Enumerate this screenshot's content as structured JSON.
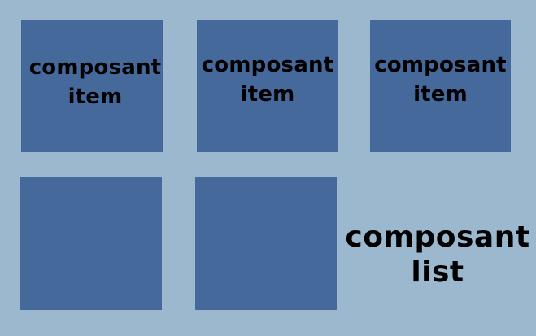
{
  "items": [
    {
      "line1": "composant",
      "line2": "item"
    },
    {
      "line1": "composant",
      "line2": "item"
    },
    {
      "line1": "composant",
      "line2": "item"
    },
    {
      "line1": "",
      "line2": ""
    },
    {
      "line1": "",
      "line2": ""
    }
  ],
  "list_label": {
    "line1": "composant",
    "line2": "list"
  },
  "colors": {
    "background": "#9cb8cf",
    "item_fill": "#46699b",
    "text": "#000000"
  }
}
